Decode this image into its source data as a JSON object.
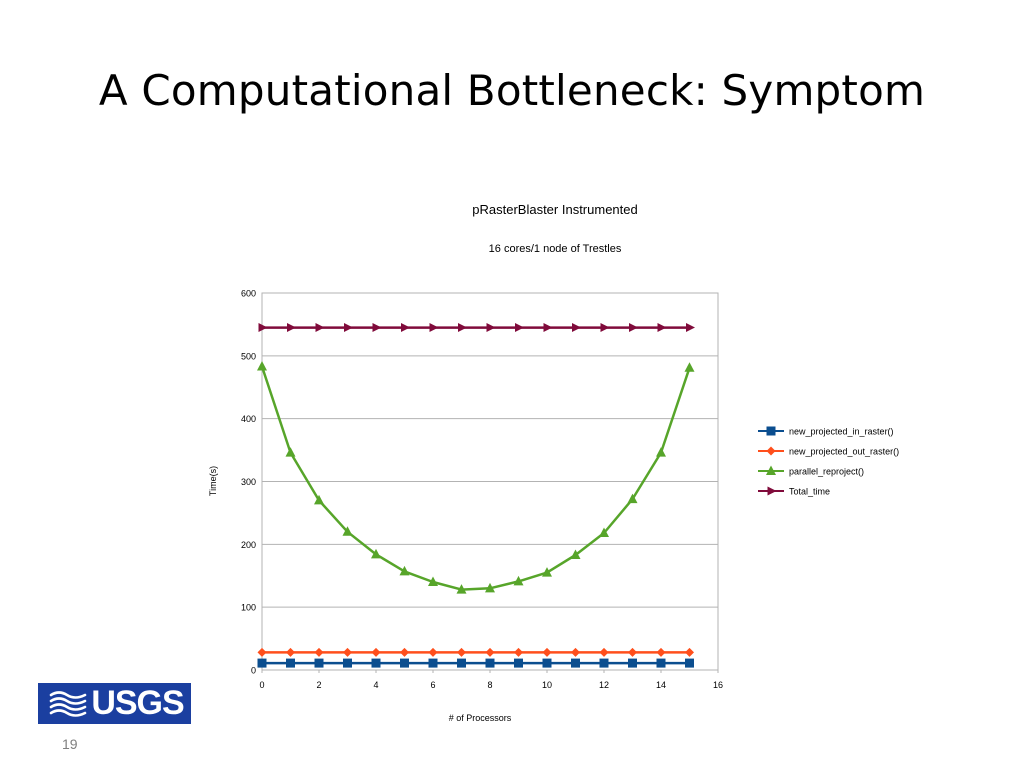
{
  "slide": {
    "title": "A Computational Bottleneck: Symptom",
    "page_number": "19",
    "logo_text": "USGS"
  },
  "chart_data": {
    "type": "line",
    "title": "pRasterBlaster Instrumented",
    "subtitle": "16 cores/1 node of Trestles",
    "xlabel": "# of Processors",
    "ylabel": "Time(s)",
    "xlim": [
      0,
      16
    ],
    "ylim": [
      0,
      600
    ],
    "xticks": [
      "0",
      "2",
      "4",
      "6",
      "8",
      "10",
      "12",
      "14",
      "16"
    ],
    "yticks": [
      "0",
      "100",
      "200",
      "300",
      "400",
      "500",
      "600"
    ],
    "grid": true,
    "legend_position": "right",
    "x": [
      0,
      1,
      2,
      3,
      4,
      5,
      6,
      7,
      8,
      9,
      10,
      11,
      12,
      13,
      14,
      15
    ],
    "series": [
      {
        "name": "new_projected_in_raster()",
        "color": "#0b4e8f",
        "marker": "square",
        "values": [
          11,
          11,
          11,
          11,
          11,
          11,
          11,
          11,
          11,
          11,
          11,
          11,
          11,
          11,
          11,
          11
        ]
      },
      {
        "name": "new_projected_out_raster()",
        "color": "#ff4f1c",
        "marker": "diamond",
        "values": [
          28,
          28,
          28,
          28,
          28,
          28,
          28,
          28,
          28,
          28,
          28,
          28,
          28,
          28,
          28,
          28
        ]
      },
      {
        "name": "parallel_reproject()",
        "color": "#57a52a",
        "marker": "triangle-up",
        "values": [
          483,
          346,
          270,
          220,
          184,
          157,
          140,
          128,
          130,
          141,
          155,
          183,
          218,
          272,
          346,
          481
        ]
      },
      {
        "name": "Total_time",
        "color": "#800b3b",
        "marker": "triangle-right",
        "values": [
          545,
          545,
          545,
          545,
          545,
          545,
          545,
          545,
          545,
          545,
          545,
          545,
          545,
          545,
          545,
          545
        ]
      }
    ]
  }
}
